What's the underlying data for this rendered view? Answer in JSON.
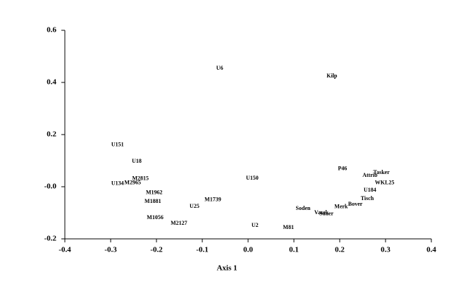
{
  "chart_data": {
    "type": "scatter",
    "x_label": "Axis 1",
    "labels": [
      "U6",
      "Kilp",
      "U151",
      "U18",
      "P46",
      "Tasker",
      "Attrib",
      "U150",
      "M2815",
      "U134",
      "M2965",
      "WKL25",
      "U184",
      "M1962",
      "Tisch",
      "M1881",
      "M1739",
      "U25",
      "Bover",
      "Merk",
      "Soden",
      "Vasek",
      "Sauer",
      "M1056",
      "M2127",
      "U2",
      "M81"
    ],
    "x": [
      -0.062,
      0.183,
      -0.285,
      -0.243,
      0.206,
      0.291,
      0.266,
      0.009,
      -0.235,
      -0.285,
      -0.252,
      0.298,
      0.266,
      -0.205,
      0.26,
      -0.208,
      -0.077,
      -0.117,
      0.234,
      0.203,
      0.12,
      0.16,
      0.171,
      -0.203,
      -0.151,
      0.015,
      0.088
    ],
    "y": [
      0.454,
      0.424,
      0.16,
      0.097,
      0.068,
      0.054,
      0.043,
      0.032,
      0.03,
      0.012,
      0.014,
      0.014,
      -0.014,
      -0.024,
      -0.046,
      -0.057,
      -0.051,
      -0.076,
      -0.068,
      -0.078,
      -0.084,
      -0.1,
      -0.105,
      -0.119,
      -0.141,
      -0.149,
      -0.157
    ],
    "xlim": [
      -0.4,
      0.4
    ],
    "ylim": [
      -0.2,
      0.6
    ],
    "xticks": [
      -0.4,
      -0.3,
      -0.2,
      -0.1,
      {
        "value": 0,
        "label": "0.0"
      },
      0.1,
      0.2,
      0.3,
      0.4
    ],
    "yticks": [
      -0.2,
      {
        "value": 0,
        "label": "-0.0"
      },
      0.2,
      0.4,
      0.6
    ]
  }
}
